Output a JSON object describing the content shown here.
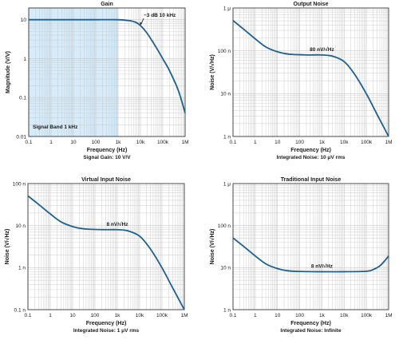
{
  "colors": {
    "curve": "#1f5f8b",
    "band": "#d6ecfa",
    "grid": "#c9c9c9"
  },
  "chart_data": [
    {
      "type": "line",
      "title": "Gain",
      "xlabel": "Frequency (Hz)",
      "ylabel": "Magnitude (V/V)",
      "caption": "Signal Gain: 10 V/V",
      "xscale": "log",
      "yscale": "log",
      "xlim": [
        0.1,
        1000000
      ],
      "ylim": [
        0.01,
        20
      ],
      "xticks": [
        0.1,
        1,
        10,
        100,
        1000,
        10000,
        100000,
        1000000
      ],
      "xtick_labels": [
        "0.1",
        "1",
        "10",
        "100",
        "1k",
        "10k",
        "100k",
        "1M"
      ],
      "yticks": [
        0.01,
        0.1,
        1,
        10
      ],
      "ytick_labels": [
        "0.01",
        "0.1",
        "1",
        "10"
      ],
      "shaded_region": {
        "x": [
          0.1,
          1000
        ],
        "label": "Signal Band 1 kHz"
      },
      "annotation": {
        "text": "−3 dB 10 kHz",
        "x": 10000,
        "y": 7.07
      },
      "x": [
        0.1,
        1,
        10,
        100,
        1000,
        3000,
        6000,
        10000,
        20000,
        50000,
        100000,
        200000,
        500000,
        1000000
      ],
      "values": [
        10,
        10,
        10,
        10,
        10,
        9.5,
        8.6,
        7.07,
        4.47,
        1.96,
        0.99,
        0.49,
        0.15,
        0.04
      ]
    },
    {
      "type": "line",
      "title": "Output Noise",
      "xlabel": "Frequency (Hz)",
      "ylabel": "Noise (V/√Hz)",
      "caption": "Integrated Noise: 10 μV rms",
      "xscale": "log",
      "yscale": "log",
      "xlim": [
        0.1,
        1000000
      ],
      "ylim": [
        1e-09,
        1e-06
      ],
      "xticks": [
        0.1,
        1,
        10,
        100,
        1000,
        10000,
        100000,
        1000000
      ],
      "xtick_labels": [
        "0.1",
        "1",
        "10",
        "100",
        "1k",
        "10k",
        "100k",
        "1M"
      ],
      "yticks": [
        1e-09,
        1e-08,
        1e-07,
        1e-06
      ],
      "ytick_labels": [
        "1 n",
        "10 n",
        "100 n",
        "1 μ"
      ],
      "annotation": {
        "text": "80 nV/√Hz",
        "x": 1000,
        "y": 8e-08
      },
      "x": [
        0.1,
        0.3,
        1,
        3,
        10,
        30,
        100,
        300,
        1000,
        3000,
        10000,
        30000,
        100000,
        300000,
        1000000
      ],
      "values": [
        5.1e-07,
        3.2e-07,
        1.9e-07,
        1.23e-07,
        9.5e-08,
        8.4e-08,
        8.1e-08,
        8e-08,
        8e-08,
        7.5e-08,
        5.6e-08,
        2.8e-08,
        9.9e-09,
        3.3e-09,
        1e-09
      ]
    },
    {
      "type": "line",
      "title": "Virtual Input Noise",
      "xlabel": "Frequency (Hz)",
      "ylabel": "Noise (V/√Hz)",
      "caption": "Integrated Noise: 1 μV rms",
      "xscale": "log",
      "yscale": "log",
      "xlim": [
        0.1,
        1000000
      ],
      "ylim": [
        1e-10,
        1e-07
      ],
      "xticks": [
        0.1,
        1,
        10,
        100,
        1000,
        10000,
        100000,
        1000000
      ],
      "xtick_labels": [
        "0.1",
        "1",
        "10",
        "100",
        "1k",
        "10k",
        "100k",
        "1M"
      ],
      "yticks": [
        1e-10,
        1e-09,
        1e-08,
        1e-07
      ],
      "ytick_labels": [
        "0.1 n",
        "1 n",
        "10 n",
        "100 n"
      ],
      "annotation": {
        "text": "8 nV/√Hz",
        "x": 1000,
        "y": 8e-09
      },
      "x": [
        0.1,
        0.3,
        1,
        3,
        10,
        30,
        100,
        300,
        1000,
        3000,
        10000,
        30000,
        100000,
        300000,
        1000000
      ],
      "values": [
        5.1e-08,
        3.2e-08,
        1.9e-08,
        1.23e-08,
        9.5e-09,
        8.4e-09,
        8.1e-09,
        8e-09,
        8e-09,
        7.5e-09,
        5.6e-09,
        2.8e-09,
        9.9e-10,
        3.3e-10,
        1e-10
      ]
    },
    {
      "type": "line",
      "title": "Traditional Input Noise",
      "xlabel": "Frequency (Hz)",
      "ylabel": "Noise (V/√Hz)",
      "caption": "Integrated Noise: Infinite",
      "xscale": "log",
      "yscale": "log",
      "xlim": [
        0.1,
        1000000
      ],
      "ylim": [
        1e-09,
        1e-06
      ],
      "xticks": [
        0.1,
        1,
        10,
        100,
        1000,
        10000,
        100000,
        1000000
      ],
      "xtick_labels": [
        "0.1",
        "1",
        "10",
        "100",
        "1k",
        "10k",
        "100k",
        "1M"
      ],
      "yticks": [
        1e-09,
        1e-08,
        1e-07,
        1e-06
      ],
      "ytick_labels": [
        "1 n",
        "10 n",
        "100 n",
        "1 μ"
      ],
      "annotation": {
        "text": "8 nV/√Hz",
        "x": 1000,
        "y": 8e-09
      },
      "x": [
        0.1,
        0.3,
        1,
        3,
        10,
        30,
        100,
        1000,
        10000,
        100000,
        200000,
        400000,
        700000,
        1000000
      ],
      "values": [
        5.1e-08,
        3.2e-08,
        1.9e-08,
        1.23e-08,
        9.5e-09,
        8.4e-09,
        8.1e-09,
        8e-09,
        8e-09,
        8.2e-09,
        9e-09,
        1.1e-08,
        1.5e-08,
        1.9e-08
      ]
    }
  ]
}
